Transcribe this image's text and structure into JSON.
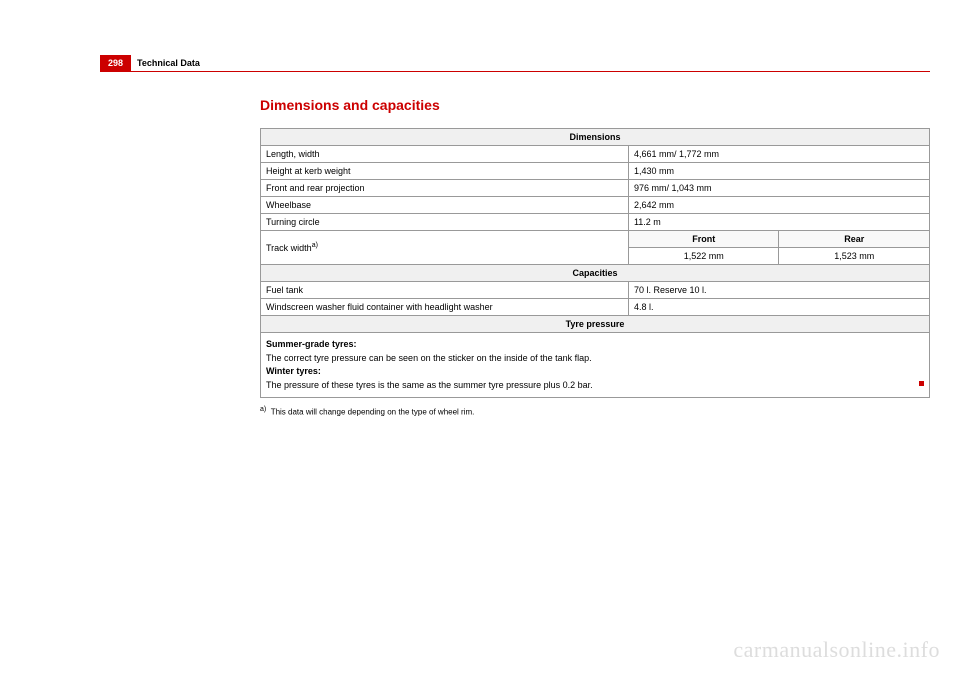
{
  "page": {
    "number": "298",
    "section": "Technical Data"
  },
  "title": "Dimensions and capacities",
  "dim": {
    "header": "Dimensions",
    "rows": {
      "r1": {
        "label": "Length, width",
        "value": "4,661 mm/ 1,772 mm"
      },
      "r2": {
        "label": "Height at kerb weight",
        "value": "1,430 mm"
      },
      "r3": {
        "label": "Front and rear projection",
        "value": "976 mm/ 1,043 mm"
      },
      "r4": {
        "label": "Wheelbase",
        "value": "2,642 mm"
      },
      "r5": {
        "label": "Turning circle",
        "value": "11.2 m"
      },
      "track": {
        "label": "Track width",
        "sup": "a)",
        "front_h": "Front",
        "rear_h": "Rear",
        "front_v": "1,522 mm",
        "rear_v": "1,523 mm"
      }
    }
  },
  "cap": {
    "header": "Capacities",
    "rows": {
      "r1": {
        "label": "Fuel tank",
        "value": "70 l. Reserve 10 l."
      },
      "r2": {
        "label": "Windscreen washer fluid container with headlight washer",
        "value": "4.8 l."
      }
    }
  },
  "tyre": {
    "header": "Tyre pressure",
    "summer_label": "Summer-grade tyres:",
    "summer_text": "The correct tyre pressure can be seen on the sticker on the inside of the tank flap.",
    "winter_label": "Winter tyres:",
    "winter_text": "The pressure of these tyres is the same as the summer tyre pressure plus 0.2 bar."
  },
  "footnote": {
    "mark": "a)",
    "text": "This data will change depending on the type of wheel rim."
  },
  "watermark": "carmanualsonline.info"
}
